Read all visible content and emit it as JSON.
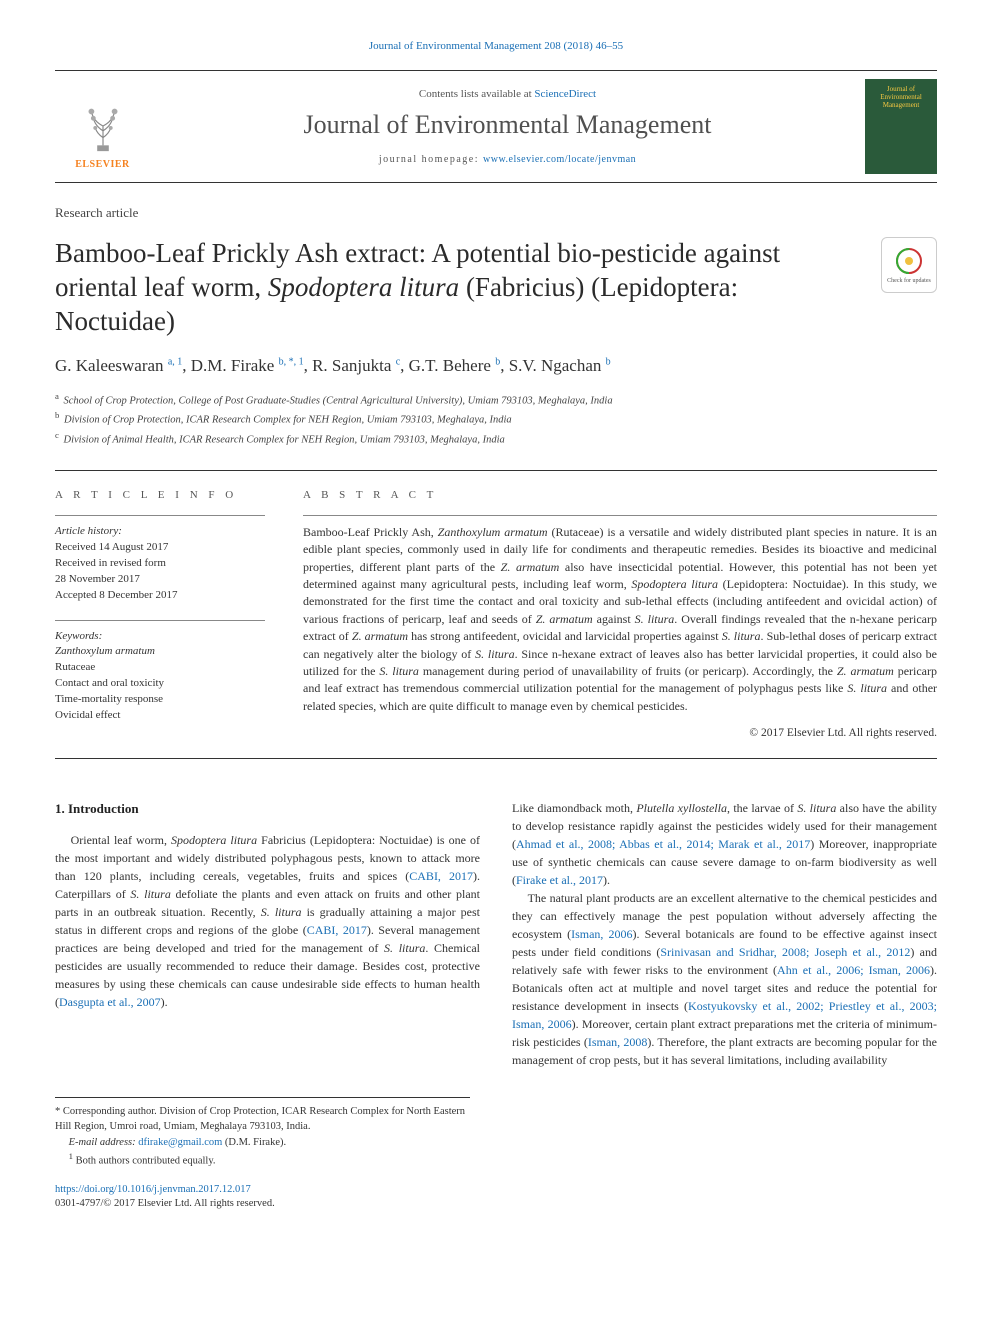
{
  "top_link": "Journal of Environmental Management 208 (2018) 46–55",
  "header": {
    "contents_prefix": "Contents lists available at ",
    "contents_link": "ScienceDirect",
    "journal_name": "Journal of Environmental Management",
    "homepage_prefix": "journal homepage: ",
    "homepage_url": "www.elsevier.com/locate/jenvman",
    "elsevier_label": "ELSEVIER",
    "cover_text1": "Journal of",
    "cover_text2": "Environmental",
    "cover_text3": "Management"
  },
  "article_type": "Research article",
  "title_html": "Bamboo-Leaf Prickly Ash extract: A potential bio-pesticide against oriental leaf worm, <em>Spodoptera litura</em> (Fabricius) (Lepidoptera: Noctuidae)",
  "check_updates": "Check for updates",
  "authors_html": "G. Kaleeswaran <sup>a, 1</sup>, D.M. Firake <sup>b, *, 1</sup>, R. Sanjukta <sup>c</sup>, G.T. Behere <sup>b</sup>, S.V. Ngachan <sup>b</sup>",
  "affiliations": [
    {
      "sup": "a",
      "text": "School of Crop Protection, College of Post Graduate-Studies (Central Agricultural University), Umiam 793103, Meghalaya, India"
    },
    {
      "sup": "b",
      "text": "Division of Crop Protection, ICAR Research Complex for NEH Region, Umiam 793103, Meghalaya, India"
    },
    {
      "sup": "c",
      "text": "Division of Animal Health, ICAR Research Complex for NEH Region, Umiam 793103, Meghalaya, India"
    }
  ],
  "info": {
    "heading": "A R T I C L E   I N F O",
    "history_label": "Article history:",
    "history": [
      "Received 14 August 2017",
      "Received in revised form",
      "28 November 2017",
      "Accepted 8 December 2017"
    ],
    "keywords_label": "Keywords:",
    "keywords": [
      "Zanthoxylum armatum",
      "Rutaceae",
      "Contact and oral toxicity",
      "Time-mortality response",
      "Ovicidal effect"
    ]
  },
  "abstract": {
    "heading": "A B S T R A C T",
    "text_html": "Bamboo-Leaf Prickly Ash, <em>Zanthoxylum armatum</em> (Rutaceae) is a versatile and widely distributed plant species in nature. It is an edible plant species, commonly used in daily life for condiments and therapeutic remedies. Besides its bioactive and medicinal properties, different plant parts of the <em>Z. armatum</em> also have insecticidal potential. However, this potential has not been yet determined against many agricultural pests, including leaf worm, <em>Spodoptera litura</em> (Lepidoptera: Noctuidae). In this study, we demonstrated for the first time the contact and oral toxicity and sub-lethal effects (including antifeedent and ovicidal action) of various fractions of pericarp, leaf and seeds of <em>Z. armatum</em> against <em>S. litura</em>. Overall findings revealed that the n-hexane pericarp extract of <em>Z. armatum</em> has strong antifeedent, ovicidal and larvicidal properties against <em>S. litura</em>. Sub-lethal doses of pericarp extract can negatively alter the biology of <em>S. litura</em>. Since n-hexane extract of leaves also has better larvicidal properties, it could also be utilized for the <em>S. litura</em> management during period of unavailability of fruits (or pericarp). Accordingly, the <em>Z. armatum</em> pericarp and leaf extract has tremendous commercial utilization potential for the management of polyphagus pests like <em>S. litura</em> and other related species, which are quite difficult to manage even by chemical pesticides.",
    "copyright": "© 2017 Elsevier Ltd. All rights reserved."
  },
  "intro": {
    "heading": "1. Introduction",
    "col1_html": "Oriental leaf worm, <em>Spodoptera litura</em> Fabricius (Lepidoptera: Noctuidae) is one of the most important and widely distributed polyphagous pests, known to attack more than 120 plants, including cereals, vegetables, fruits and spices (<a class='cite' href='#'>CABI, 2017</a>). Caterpillars of <em>S. litura</em> defoliate the plants and even attack on fruits and other plant parts in an outbreak situation. Recently, <em>S. litura</em> is gradually attaining a major pest status in different crops and regions of the globe (<a class='cite' href='#'>CABI, 2017</a>). Several management practices are being developed and tried for the management of <em>S. litura</em>. Chemical pesticides are usually recommended to reduce their damage. Besides cost, protective measures by using these chemicals can cause undesirable side effects to human health (<a class='cite' href='#'>Dasgupta et al., 2007</a>).",
    "col2a_html": "Like diamondback moth, <em>Plutella xyllostella</em>, the larvae of <em>S. litura</em> also have the ability to develop resistance rapidly against the pesticides widely used for their management (<a class='cite' href='#'>Ahmad et al., 2008; Abbas et al., 2014; Marak et al., 2017</a>) Moreover, inappropriate use of synthetic chemicals can cause severe damage to on-farm biodiversity as well (<a class='cite' href='#'>Firake et al., 2017</a>).",
    "col2b_html": "The natural plant products are an excellent alternative to the chemical pesticides and they can effectively manage the pest population without adversely affecting the ecosystem (<a class='cite' href='#'>Isman, 2006</a>). Several botanicals are found to be effective against insect pests under field conditions (<a class='cite' href='#'>Srinivasan and Sridhar, 2008; Joseph et al., 2012</a>) and relatively safe with fewer risks to the environment (<a class='cite' href='#'>Ahn et al., 2006; Isman, 2006</a>). Botanicals often act at multiple and novel target sites and reduce the potential for resistance development in insects (<a class='cite' href='#'>Kostyukovsky et al., 2002; Priestley et al., 2003; Isman, 2006</a>). Moreover, certain plant extract preparations met the criteria of minimum-risk pesticides (<a class='cite' href='#'>Isman, 2008</a>). Therefore, the plant extracts are becoming popular for the management of crop pests, but it has several limitations, including availability"
  },
  "footnotes": {
    "corr_marker": "*",
    "corr_text": "Corresponding author. Division of Crop Protection, ICAR Research Complex for North Eastern Hill Region, Umroi road, Umiam, Meghalaya 793103, India.",
    "email_label": "E-mail address:",
    "email": "dfirake@gmail.com",
    "email_who": "(D.M. Firake).",
    "equal_marker": "1",
    "equal_text": "Both authors contributed equally."
  },
  "bottom": {
    "doi": "https://doi.org/10.1016/j.jenvman.2017.12.017",
    "issn_cpy": "0301-4797/© 2017 Elsevier Ltd. All rights reserved."
  },
  "colors": {
    "link": "#1a6fb5",
    "elsevier_orange": "#f58220",
    "cover_bg": "#2a5a3a",
    "cover_text": "#f5c842",
    "text": "#333333",
    "rule": "#333333"
  }
}
